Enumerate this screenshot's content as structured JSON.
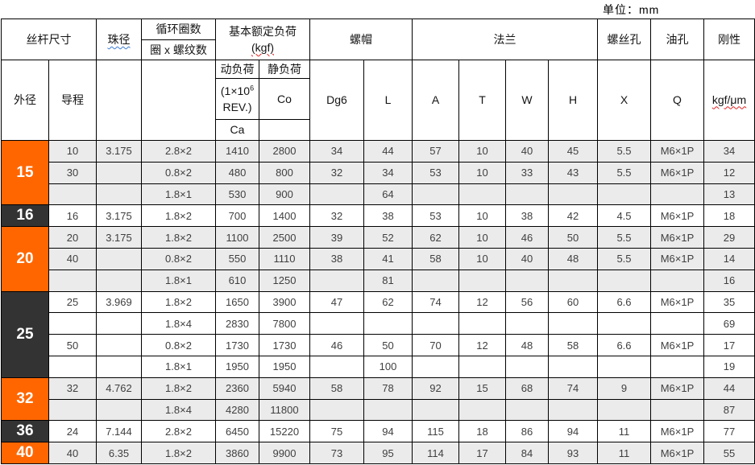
{
  "unit_label": "单位：mm",
  "colors": {
    "accent_orange": "#ff6600",
    "accent_dark": "#333333",
    "stripe_gray": "#ebebeb",
    "border": "#000000"
  },
  "header": {
    "screw_size": "丝杆尺寸",
    "outer_diameter": "外径",
    "lead": "导程",
    "ball_diameter": "珠径",
    "circulation": "循环圈数",
    "circulation_sub": "圈 x 螺纹数",
    "rated_load": "基本额定负荷",
    "rated_load_unit": "(kgf)",
    "dynamic_load": "动负荷",
    "rev_prefix": "(1×10",
    "rev_sup": "6",
    "rev_suffix": "REV.)",
    "dynamic_symbol": "Ca",
    "static_load": "静负荷",
    "static_symbol": "Co",
    "nut": "螺帽",
    "nut_dg6": "Dg6",
    "nut_l": "L",
    "flange": "法兰",
    "flange_a": "A",
    "flange_t": "T",
    "flange_w": "W",
    "flange_h": "H",
    "screw_hole": "螺丝孔",
    "screw_hole_x": "X",
    "oil_hole": "油孔",
    "oil_hole_q": "Q",
    "rigidity": "刚性",
    "rigidity_unit": "kgf/μm"
  },
  "sections": [
    {
      "label": "15",
      "label_color": "orange",
      "row_bg": "gray",
      "rows": [
        [
          "10",
          "3.175",
          "2.8×2",
          "1410",
          "2800",
          "34",
          "44",
          "57",
          "10",
          "40",
          "45",
          "5.5",
          "M6×1P",
          "34"
        ],
        [
          "30",
          "",
          "0.8×2",
          "480",
          "800",
          "32",
          "34",
          "53",
          "10",
          "33",
          "43",
          "5.5",
          "M6×1P",
          "12"
        ],
        [
          "",
          "",
          "1.8×1",
          "530",
          "900",
          "",
          "64",
          "",
          "",
          "",
          "",
          "",
          "",
          "13"
        ]
      ]
    },
    {
      "label": "16",
      "label_color": "dark",
      "row_bg": "white",
      "rows": [
        [
          "16",
          "3.175",
          "1.8×2",
          "700",
          "1400",
          "32",
          "38",
          "53",
          "10",
          "38",
          "42",
          "4.5",
          "M6×1P",
          "18"
        ]
      ]
    },
    {
      "label": "20",
      "label_color": "orange",
      "row_bg": "gray",
      "rows": [
        [
          "20",
          "3.175",
          "1.8×2",
          "1100",
          "2500",
          "39",
          "52",
          "62",
          "10",
          "46",
          "50",
          "5.5",
          "M6×1P",
          "29"
        ],
        [
          "40",
          "",
          "0.8×2",
          "550",
          "1110",
          "38",
          "41",
          "58",
          "10",
          "40",
          "48",
          "5.5",
          "M6×1P",
          "14"
        ],
        [
          "",
          "",
          "1.8×1",
          "610",
          "1250",
          "",
          "81",
          "",
          "",
          "",
          "",
          "",
          "",
          "16"
        ]
      ]
    },
    {
      "label": "25",
      "label_color": "dark",
      "row_bg": "white",
      "rows": [
        [
          "25",
          "3.969",
          "1.8×2",
          "1650",
          "3900",
          "47",
          "62",
          "74",
          "12",
          "56",
          "60",
          "6.6",
          "M6×1P",
          "35"
        ],
        [
          "",
          "",
          "1.8×4",
          "2830",
          "7800",
          "",
          "",
          "",
          "",
          "",
          "",
          "",
          "",
          "69"
        ],
        [
          "50",
          "",
          "0.8×2",
          "1730",
          "1730",
          "46",
          "50",
          "70",
          "12",
          "48",
          "58",
          "6.6",
          "M6×1P",
          "17"
        ],
        [
          "",
          "",
          "1.8×1",
          "1950",
          "1950",
          "",
          "100",
          "",
          "",
          "",
          "",
          "",
          "",
          "19"
        ]
      ]
    },
    {
      "label": "32",
      "label_color": "orange",
      "row_bg": "gray",
      "rows": [
        [
          "32",
          "4.762",
          "1.8×2",
          "2360",
          "5940",
          "58",
          "78",
          "92",
          "15",
          "68",
          "74",
          "9",
          "M6×1P",
          "44"
        ],
        [
          "",
          "",
          "1.8×4",
          "4280",
          "11800",
          "",
          "",
          "",
          "",
          "",
          "",
          "",
          "",
          "87"
        ]
      ]
    },
    {
      "label": "36",
      "label_color": "dark",
      "row_bg": "white",
      "rows": [
        [
          "24",
          "7.144",
          "2.8×2",
          "6450",
          "15220",
          "75",
          "94",
          "115",
          "18",
          "86",
          "94",
          "11",
          "M6×1P",
          "77"
        ]
      ]
    },
    {
      "label": "40",
      "label_color": "orange",
      "row_bg": "gray",
      "rows": [
        [
          "40",
          "6.35",
          "1.8×2",
          "3860",
          "9900",
          "73",
          "95",
          "114",
          "17",
          "84",
          "93",
          "11",
          "M6×1P",
          "55"
        ]
      ]
    }
  ]
}
